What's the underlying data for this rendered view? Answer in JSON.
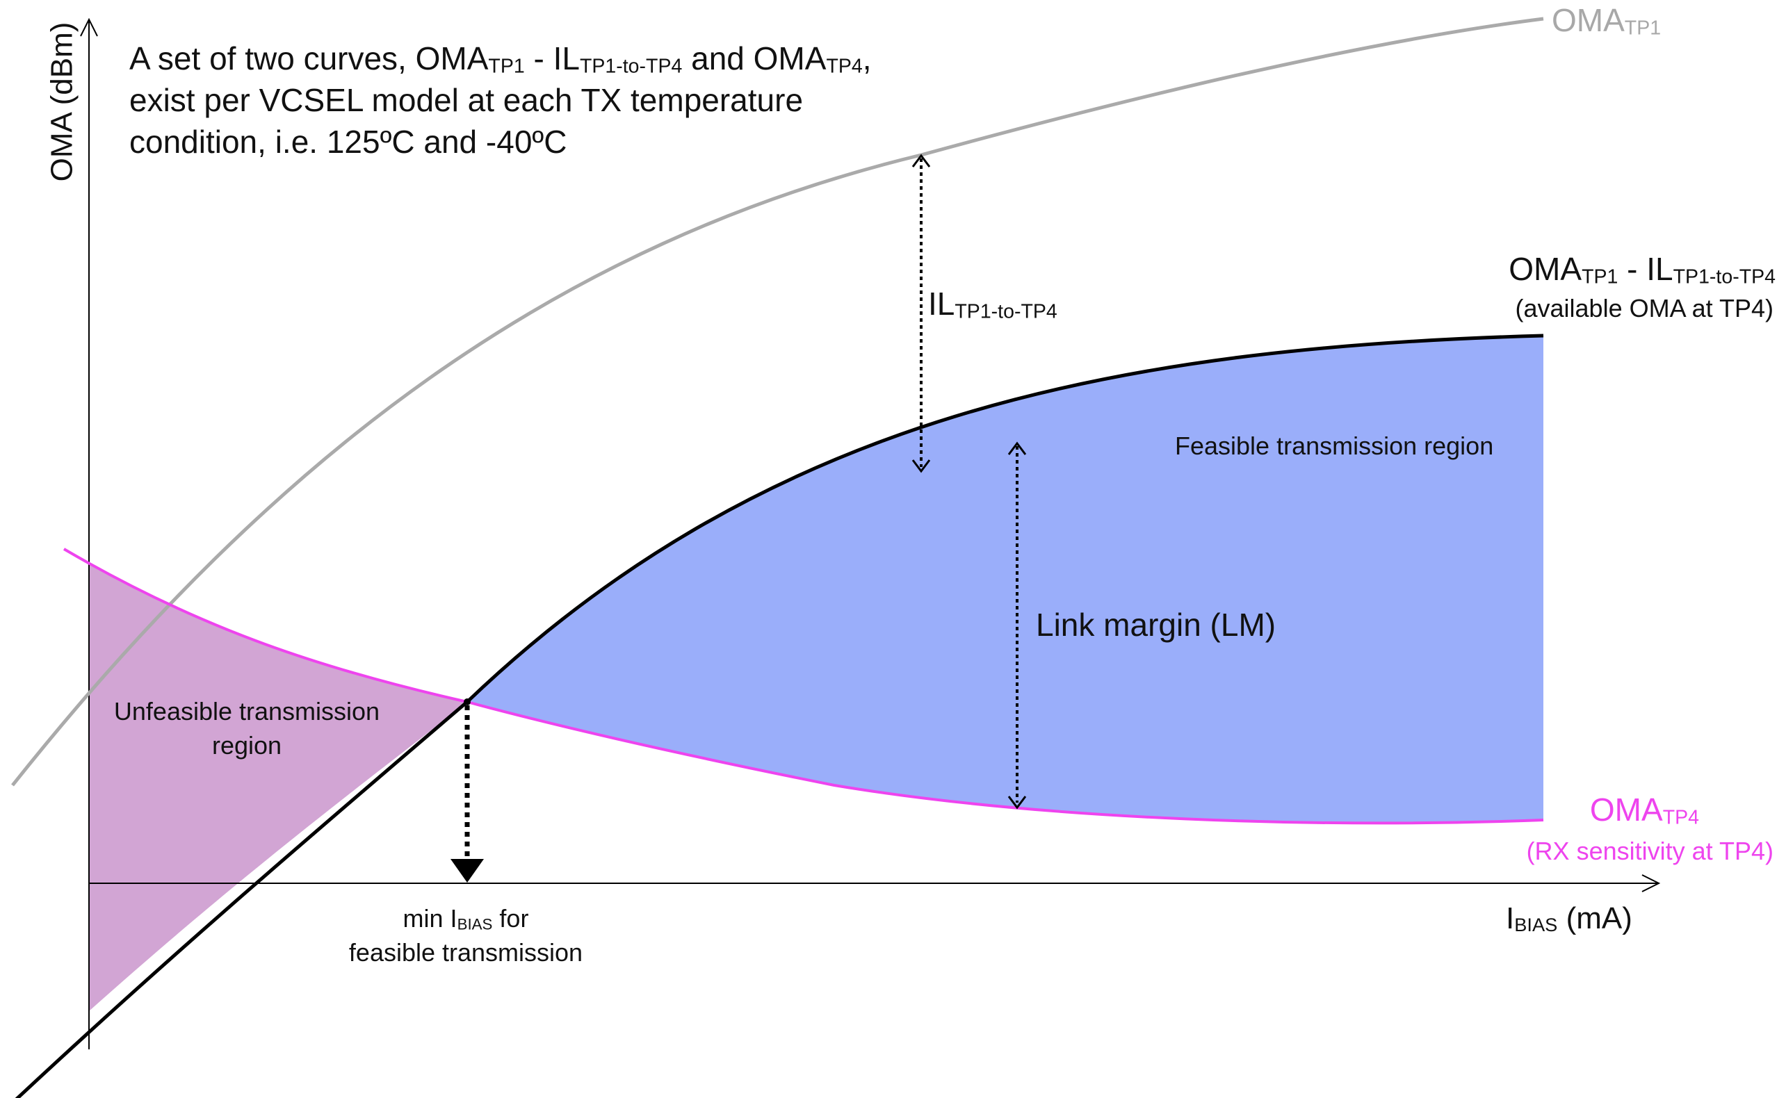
{
  "axes": {
    "y_label": "OMA (dBm)",
    "x_label": {
      "main": "I",
      "sub": "BIAS",
      "unit": " (mA)"
    }
  },
  "note_text": {
    "line1": {
      "a": "A set of two curves, OMA",
      "a_sub": "TP1",
      "b": " - IL",
      "b_sub": "TP1-to-TP4",
      "c": " and OMA",
      "c_sub": "TP4",
      "d": ","
    },
    "line2": "exist per VCSEL model at each TX temperature",
    "line3": "condition, i.e. 125ºC and -40ºC"
  },
  "curves": {
    "tp1": {
      "main": "OMA",
      "sub": "TP1",
      "color": "#aaaaaa"
    },
    "tp1_minus_il": {
      "main": "OMA",
      "sub": "TP1",
      "mid": " - IL",
      "sub2": "TP1-to-TP4",
      "caption": "(available OMA at TP4)",
      "color": "#000000"
    },
    "tp4": {
      "main": "OMA",
      "sub": "TP4",
      "caption": "(RX sensitivity at TP4)",
      "color": "#ee44ee"
    }
  },
  "annotations": {
    "il": {
      "main": "IL",
      "sub": "TP1-to-TP4"
    },
    "link_margin": "Link margin (LM)",
    "feasible_region": "Feasible transmission region",
    "unfeasible_region": {
      "line1": "Unfeasible transmission",
      "line2": "region"
    },
    "min_bias": {
      "pre": "min I",
      "sub": "BIAS",
      "post": " for",
      "line2": "feasible transmission"
    }
  },
  "colors": {
    "feasible_fill": "#9aaefa",
    "unfeasible_fill": "#d2a5d4",
    "axis": "#000000"
  }
}
